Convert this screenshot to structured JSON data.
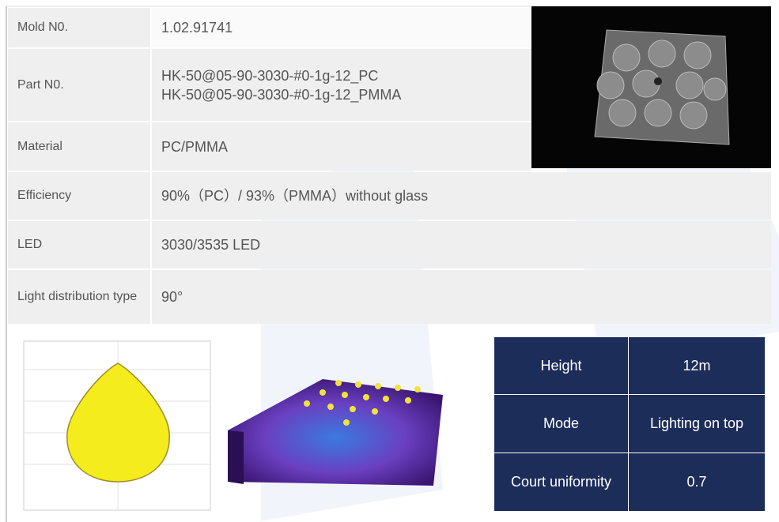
{
  "spec_table": {
    "rows": [
      {
        "label": "Mold N0.",
        "values": [
          "1.02.91741"
        ]
      },
      {
        "label": "Part N0.",
        "values": [
          "HK-50@05-90-3030-#0-1g-12_PC",
          "HK-50@05-90-3030-#0-1g-12_PMMA"
        ]
      },
      {
        "label": "Material",
        "values": [
          "PC/PMMA"
        ]
      },
      {
        "label": "Efficiency",
        "values": [
          "90%（PC）/ 93%（PMMA）without glass"
        ]
      },
      {
        "label": "LED",
        "values": [
          "3030/3535 LED"
        ]
      },
      {
        "label": "Light distribution type",
        "values": [
          "90°"
        ]
      }
    ]
  },
  "performance_table": {
    "rows": [
      [
        "Height",
        "12m"
      ],
      [
        "Mode",
        "Lighting on top"
      ],
      [
        "Court uniformity",
        "0.7"
      ]
    ]
  }
}
